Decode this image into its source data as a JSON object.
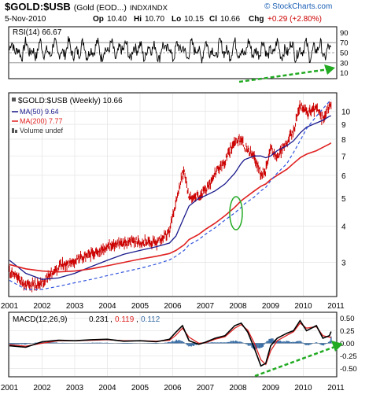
{
  "header": {
    "symbol": "$GOLD:$USB",
    "name": "(Gold (EOD...)",
    "exchange": "INDX/INDX",
    "date": "5-Nov-2010",
    "op_label": "Op",
    "op": "10.40",
    "hi_label": "Hi",
    "hi": "10.70",
    "lo_label": "Lo",
    "lo": "10.15",
    "cl_label": "Cl",
    "cl": "10.66",
    "chg_label": "Chg",
    "chg": "+0.29 (+2.80%)",
    "chg_color": "#cc0000",
    "watermark": "© StockCharts.com"
  },
  "colors": {
    "price": "#cc0000",
    "ma50": "#1a1a8c",
    "ma200": "#e02020",
    "lower_channel": "#3355dd",
    "macd_line": "#000000",
    "signal_line": "#dd2222",
    "histogram": "#3a6ea5",
    "trend_arrows": "#22aa22",
    "ellipse": "#22aa22"
  },
  "chart_data": [
    {
      "type": "line",
      "panel": "rsi",
      "legend": "RSI(14) 66.67",
      "ylim": [
        0,
        100
      ],
      "y_ticks": [
        "90",
        "70",
        "50",
        "30",
        "10"
      ],
      "reference_lines": [
        70,
        50,
        30
      ]
    },
    {
      "type": "line",
      "panel": "price",
      "legend_title": "$GOLD:$USB (Weekly) 10.66",
      "legend_items": [
        {
          "label": "MA(50) 9.64",
          "color": "#1a1a8c"
        },
        {
          "label": "MA(200) 7.77",
          "color": "#e02020"
        },
        {
          "label": "Volume undef",
          "color": "#555555"
        }
      ],
      "scale": "log",
      "ylim": [
        2.3,
        11.5
      ],
      "y_ticks": [
        "10",
        "9",
        "8",
        "7",
        "6",
        "5",
        "4",
        "3"
      ],
      "x_ticks": [
        "2001",
        "2002",
        "2003",
        "2004",
        "2005",
        "2006",
        "2007",
        "2008",
        "2009",
        "2010",
        "2011"
      ],
      "x": [
        2001.0,
        2001.5,
        2002.0,
        2002.5,
        2003.0,
        2003.5,
        2004.0,
        2004.5,
        2005.0,
        2005.5,
        2005.9,
        2006.1,
        2006.35,
        2006.5,
        2006.8,
        2007.0,
        2007.3,
        2007.6,
        2007.9,
        2008.1,
        2008.2,
        2008.5,
        2008.7,
        2008.85,
        2009.0,
        2009.2,
        2009.5,
        2009.7,
        2009.9,
        2010.1,
        2010.4,
        2010.6,
        2010.8,
        2010.85
      ],
      "series": [
        {
          "values": [
            2.8,
            2.5,
            2.55,
            2.9,
            3.05,
            3.2,
            3.4,
            3.5,
            3.55,
            3.5,
            3.8,
            4.9,
            6.3,
            5.0,
            5.1,
            5.3,
            6.1,
            6.7,
            7.9,
            8.0,
            7.5,
            6.9,
            6.1,
            6.3,
            7.5,
            6.9,
            7.9,
            8.5,
            10.5,
            9.9,
            10.2,
            9.4,
            10.4,
            10.66
          ]
        },
        {
          "name": "MA(50)",
          "values": [
            3.05,
            2.75,
            2.62,
            2.65,
            2.75,
            2.9,
            3.05,
            3.2,
            3.3,
            3.4,
            3.5,
            3.7,
            4.3,
            4.7,
            5.0,
            5.1,
            5.3,
            5.6,
            6.1,
            6.6,
            6.8,
            7.0,
            7.0,
            6.9,
            7.0,
            7.3,
            7.6,
            7.9,
            8.4,
            8.8,
            9.1,
            9.3,
            9.6,
            9.64
          ]
        },
        {
          "name": "MA(200)",
          "values": [
            2.95,
            2.85,
            2.8,
            2.78,
            2.8,
            2.85,
            2.92,
            3.0,
            3.08,
            3.15,
            3.22,
            3.3,
            3.45,
            3.6,
            3.75,
            3.9,
            4.1,
            4.35,
            4.65,
            4.9,
            5.0,
            5.3,
            5.5,
            5.6,
            5.8,
            6.0,
            6.3,
            6.6,
            6.9,
            7.1,
            7.3,
            7.5,
            7.7,
            7.77
          ]
        },
        {
          "values": [
            2.6,
            2.42,
            2.42,
            2.48,
            2.55,
            2.62,
            2.7,
            2.78,
            2.86,
            2.96,
            3.06,
            3.15,
            3.3,
            3.45,
            3.6,
            3.75,
            3.95,
            4.2,
            4.45,
            4.65,
            4.78,
            5.05,
            5.3,
            5.45,
            5.75,
            6.1,
            6.6,
            7.2,
            7.9,
            8.7,
            9.6,
            10.2,
            10.8,
            10.95
          ]
        }
      ]
    },
    {
      "type": "line",
      "panel": "macd",
      "legend_prefix": "MACD(12,26,9)",
      "legend_macd": "0.231",
      "legend_signal": "0.119",
      "legend_hist": "0.112",
      "ylim": [
        -0.65,
        0.6
      ],
      "y_ticks": [
        "0.50",
        "0.25",
        "0.00",
        "-0.25",
        "-0.50"
      ],
      "x_ticks": [
        "2001",
        "2002",
        "2003",
        "2004",
        "2005",
        "2006",
        "2007",
        "2008",
        "2009",
        "2010",
        "2011"
      ],
      "x": [
        2001.0,
        2001.5,
        2002.0,
        2002.5,
        2003.0,
        2003.5,
        2004.0,
        2004.5,
        2005.0,
        2005.5,
        2005.9,
        2006.1,
        2006.3,
        2006.5,
        2006.8,
        2007.0,
        2007.3,
        2007.6,
        2007.9,
        2008.1,
        2008.3,
        2008.5,
        2008.7,
        2008.85,
        2009.0,
        2009.2,
        2009.5,
        2009.7,
        2009.9,
        2010.1,
        2010.4,
        2010.6,
        2010.8,
        2010.85
      ],
      "series": [
        {
          "name": "MACD",
          "values": [
            -0.05,
            -0.08,
            0.03,
            0.06,
            0.05,
            0.07,
            0.08,
            0.04,
            0.05,
            0.03,
            0.08,
            0.22,
            0.35,
            0.05,
            -0.02,
            0.02,
            0.1,
            0.15,
            0.35,
            0.4,
            0.22,
            -0.1,
            -0.45,
            -0.4,
            -0.05,
            0.1,
            0.2,
            0.25,
            0.45,
            0.25,
            0.35,
            0.1,
            0.15,
            0.231
          ]
        },
        {
          "name": "Signal",
          "values": [
            -0.03,
            -0.06,
            0.0,
            0.05,
            0.05,
            0.06,
            0.07,
            0.05,
            0.05,
            0.04,
            0.06,
            0.16,
            0.3,
            0.12,
            0.0,
            0.01,
            0.08,
            0.13,
            0.3,
            0.37,
            0.26,
            0.0,
            -0.33,
            -0.42,
            -0.15,
            0.05,
            0.16,
            0.23,
            0.4,
            0.3,
            0.33,
            0.15,
            0.12,
            0.119
          ]
        },
        {
          "name": "Histogram",
          "values": [
            -0.02,
            -0.02,
            0.03,
            0.01,
            0.0,
            0.01,
            0.01,
            -0.01,
            0.0,
            -0.01,
            0.02,
            0.06,
            0.05,
            -0.07,
            -0.02,
            0.01,
            0.02,
            0.02,
            0.05,
            0.03,
            -0.04,
            -0.1,
            -0.12,
            0.02,
            0.1,
            0.05,
            0.04,
            0.02,
            0.05,
            -0.05,
            0.02,
            -0.05,
            0.03,
            0.112
          ]
        }
      ]
    }
  ]
}
